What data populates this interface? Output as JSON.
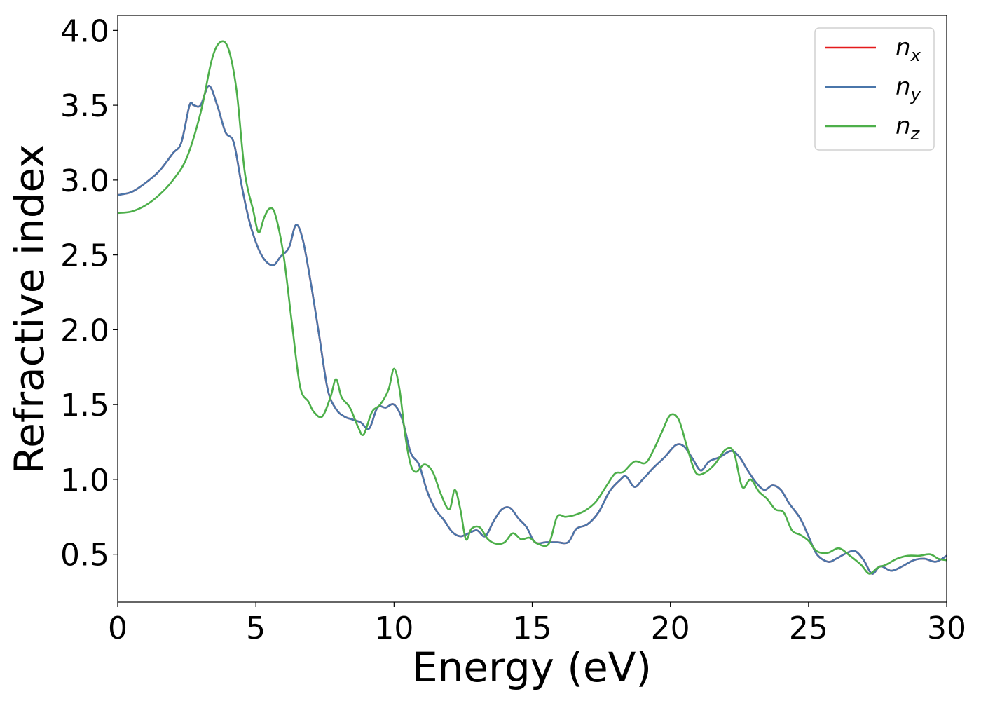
{
  "chart_data": {
    "type": "line",
    "xlabel": "Energy (eV)",
    "ylabel": "Refractive index",
    "xlim": [
      0,
      30
    ],
    "ylim": [
      0.18,
      4.1
    ],
    "xticks": [
      0,
      5,
      10,
      15,
      20,
      25,
      30
    ],
    "xtick_labels": [
      "0",
      "5",
      "10",
      "15",
      "20",
      "25",
      "30"
    ],
    "yticks": [
      0.5,
      1.0,
      1.5,
      2.0,
      2.5,
      3.0,
      3.5,
      4.0
    ],
    "ytick_labels": [
      "0.5",
      "1.0",
      "1.5",
      "2.0",
      "2.5",
      "3.0",
      "3.5",
      "4.0"
    ],
    "grid": false,
    "legend_position": "top-right",
    "series": [
      {
        "name": "n_x",
        "base": "n",
        "sub": "x",
        "color": "#e41a1c",
        "x": [
          0,
          0.5,
          1.0,
          1.5,
          2.0,
          2.3,
          2.6,
          2.75,
          3.0,
          3.3,
          3.6,
          3.9,
          4.2,
          4.5,
          4.8,
          5.2,
          5.6,
          5.9,
          6.2,
          6.45,
          6.7,
          7.0,
          7.3,
          7.6,
          7.9,
          8.2,
          8.5,
          8.8,
          9.1,
          9.4,
          9.7,
          10.0,
          10.3,
          10.6,
          10.9,
          11.2,
          11.5,
          11.8,
          12.1,
          12.4,
          12.7,
          13.0,
          13.3,
          13.6,
          13.9,
          14.2,
          14.5,
          14.8,
          15.1,
          15.5,
          15.9,
          16.3,
          16.6,
          17.0,
          17.4,
          17.8,
          18.2,
          18.4,
          18.7,
          19.0,
          19.4,
          19.8,
          20.2,
          20.5,
          20.8,
          21.1,
          21.4,
          21.8,
          22.2,
          22.5,
          22.8,
          23.1,
          23.4,
          23.7,
          24.0,
          24.3,
          24.7,
          25.0,
          25.3,
          25.7,
          26.0,
          26.4,
          26.7,
          27.0,
          27.3,
          27.6,
          28.0,
          28.4,
          28.8,
          29.2,
          29.6,
          30.0
        ],
        "y": [
          2.9,
          2.92,
          2.98,
          3.06,
          3.18,
          3.25,
          3.5,
          3.5,
          3.5,
          3.63,
          3.5,
          3.32,
          3.25,
          2.95,
          2.7,
          2.5,
          2.43,
          2.49,
          2.55,
          2.7,
          2.6,
          2.3,
          1.95,
          1.6,
          1.47,
          1.42,
          1.4,
          1.38,
          1.34,
          1.48,
          1.48,
          1.5,
          1.4,
          1.18,
          1.1,
          0.92,
          0.8,
          0.73,
          0.65,
          0.62,
          0.64,
          0.66,
          0.62,
          0.72,
          0.8,
          0.81,
          0.74,
          0.68,
          0.58,
          0.58,
          0.58,
          0.58,
          0.67,
          0.7,
          0.78,
          0.92,
          1.0,
          1.02,
          0.95,
          1.0,
          1.08,
          1.15,
          1.23,
          1.22,
          1.14,
          1.06,
          1.12,
          1.15,
          1.19,
          1.15,
          1.06,
          0.98,
          0.93,
          0.96,
          0.93,
          0.84,
          0.74,
          0.62,
          0.5,
          0.45,
          0.47,
          0.51,
          0.52,
          0.46,
          0.37,
          0.42,
          0.39,
          0.42,
          0.46,
          0.47,
          0.45,
          0.49
        ]
      },
      {
        "name": "n_y",
        "base": "n",
        "sub": "y",
        "color": "#4a76aa",
        "x": [
          0,
          0.5,
          1.0,
          1.5,
          2.0,
          2.3,
          2.6,
          2.75,
          3.0,
          3.3,
          3.6,
          3.9,
          4.2,
          4.5,
          4.8,
          5.2,
          5.6,
          5.9,
          6.2,
          6.45,
          6.7,
          7.0,
          7.3,
          7.6,
          7.9,
          8.2,
          8.5,
          8.8,
          9.1,
          9.4,
          9.7,
          10.0,
          10.3,
          10.6,
          10.9,
          11.2,
          11.5,
          11.8,
          12.1,
          12.4,
          12.7,
          13.0,
          13.3,
          13.6,
          13.9,
          14.2,
          14.5,
          14.8,
          15.1,
          15.5,
          15.9,
          16.3,
          16.6,
          17.0,
          17.4,
          17.8,
          18.2,
          18.4,
          18.7,
          19.0,
          19.4,
          19.8,
          20.2,
          20.5,
          20.8,
          21.1,
          21.4,
          21.8,
          22.2,
          22.5,
          22.8,
          23.1,
          23.4,
          23.7,
          24.0,
          24.3,
          24.7,
          25.0,
          25.3,
          25.7,
          26.0,
          26.4,
          26.7,
          27.0,
          27.3,
          27.6,
          28.0,
          28.4,
          28.8,
          29.2,
          29.6,
          30.0
        ],
        "y": [
          2.9,
          2.92,
          2.98,
          3.06,
          3.18,
          3.25,
          3.5,
          3.5,
          3.5,
          3.63,
          3.5,
          3.32,
          3.25,
          2.95,
          2.7,
          2.5,
          2.43,
          2.49,
          2.55,
          2.7,
          2.6,
          2.3,
          1.95,
          1.6,
          1.47,
          1.42,
          1.4,
          1.38,
          1.34,
          1.48,
          1.48,
          1.5,
          1.4,
          1.18,
          1.1,
          0.92,
          0.8,
          0.73,
          0.65,
          0.62,
          0.64,
          0.66,
          0.62,
          0.72,
          0.8,
          0.81,
          0.74,
          0.68,
          0.58,
          0.58,
          0.58,
          0.58,
          0.67,
          0.7,
          0.78,
          0.92,
          1.0,
          1.02,
          0.95,
          1.0,
          1.08,
          1.15,
          1.23,
          1.22,
          1.14,
          1.06,
          1.12,
          1.15,
          1.19,
          1.15,
          1.06,
          0.98,
          0.93,
          0.96,
          0.93,
          0.84,
          0.74,
          0.62,
          0.5,
          0.45,
          0.47,
          0.51,
          0.52,
          0.46,
          0.37,
          0.42,
          0.39,
          0.42,
          0.46,
          0.47,
          0.45,
          0.49
        ]
      },
      {
        "name": "n_z",
        "base": "n",
        "sub": "z",
        "color": "#4daf4a",
        "x": [
          0,
          0.5,
          1.0,
          1.5,
          2.0,
          2.5,
          3.0,
          3.4,
          3.7,
          4.0,
          4.3,
          4.6,
          4.9,
          5.1,
          5.3,
          5.5,
          5.7,
          6.0,
          6.3,
          6.6,
          6.9,
          7.1,
          7.4,
          7.7,
          7.9,
          8.1,
          8.4,
          8.7,
          8.9,
          9.2,
          9.5,
          9.8,
          10.0,
          10.2,
          10.4,
          10.6,
          10.8,
          11.1,
          11.4,
          11.7,
          12.0,
          12.2,
          12.4,
          12.6,
          12.8,
          13.1,
          13.4,
          13.7,
          14.0,
          14.3,
          14.6,
          14.9,
          15.2,
          15.6,
          15.9,
          16.2,
          16.5,
          16.9,
          17.3,
          17.7,
          18.0,
          18.3,
          18.7,
          19.1,
          19.4,
          19.7,
          20.0,
          20.3,
          20.6,
          20.9,
          21.2,
          21.6,
          22.0,
          22.3,
          22.6,
          22.9,
          23.2,
          23.5,
          23.8,
          24.1,
          24.4,
          24.7,
          25.0,
          25.3,
          25.7,
          26.1,
          26.5,
          26.9,
          27.2,
          27.5,
          27.8,
          28.2,
          28.6,
          29.0,
          29.4,
          29.7,
          30.0
        ],
        "y": [
          2.78,
          2.79,
          2.83,
          2.9,
          3.0,
          3.15,
          3.45,
          3.8,
          3.92,
          3.88,
          3.6,
          3.05,
          2.8,
          2.65,
          2.75,
          2.81,
          2.77,
          2.5,
          2.05,
          1.62,
          1.52,
          1.45,
          1.42,
          1.55,
          1.67,
          1.55,
          1.48,
          1.35,
          1.3,
          1.45,
          1.5,
          1.6,
          1.74,
          1.6,
          1.3,
          1.1,
          1.05,
          1.1,
          1.05,
          0.9,
          0.8,
          0.93,
          0.8,
          0.6,
          0.67,
          0.68,
          0.6,
          0.57,
          0.58,
          0.64,
          0.6,
          0.61,
          0.57,
          0.57,
          0.75,
          0.75,
          0.76,
          0.79,
          0.85,
          0.96,
          1.04,
          1.05,
          1.12,
          1.11,
          1.2,
          1.32,
          1.43,
          1.4,
          1.22,
          1.05,
          1.04,
          1.1,
          1.2,
          1.18,
          0.95,
          1.0,
          0.92,
          0.87,
          0.8,
          0.78,
          0.66,
          0.63,
          0.59,
          0.52,
          0.51,
          0.54,
          0.49,
          0.43,
          0.37,
          0.41,
          0.43,
          0.47,
          0.49,
          0.49,
          0.5,
          0.47,
          0.46
        ]
      }
    ]
  }
}
